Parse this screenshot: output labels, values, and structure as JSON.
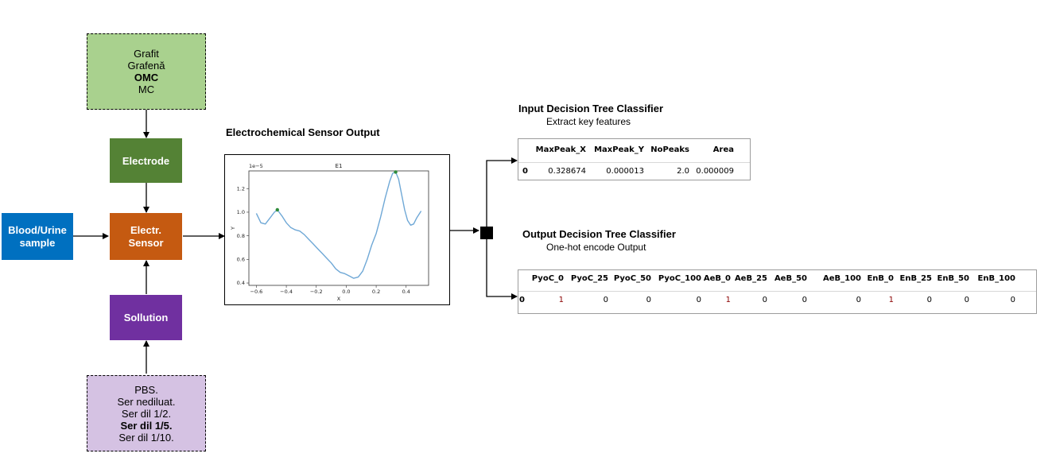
{
  "materials": {
    "lines": [
      "Grafit",
      "Grafenă",
      "OMC",
      "MC"
    ],
    "bold_index": 2
  },
  "electrode": {
    "label": "Electrode"
  },
  "sensor": {
    "lines": [
      "Electr.",
      "Sensor"
    ]
  },
  "sample": {
    "lines": [
      "Blood/Urine",
      "sample"
    ]
  },
  "solution": {
    "label": "Sollution"
  },
  "solutions_list": {
    "lines": [
      "PBS.",
      "Ser nediluat.",
      "Ser dil 1/2.",
      "Ser dil 1/5.",
      "Ser dil 1/10."
    ],
    "bold_index": 3
  },
  "sensor_output": {
    "title": "Electrochemical Sensor Output"
  },
  "input_classifier": {
    "title": "Input Decision Tree Classifier",
    "subtitle": "Extract key features",
    "headers": [
      "MaxPeak_X",
      "MaxPeak_Y",
      "NoPeaks",
      "Area"
    ],
    "row_index": "0",
    "values": [
      "0.328674",
      "0.000013",
      "2.0",
      "0.000009"
    ]
  },
  "output_classifier": {
    "title": "Output Decision Tree Classifier",
    "subtitle": "One-hot encode Output",
    "headers": [
      "PyoC_0",
      "PyoC_25",
      "PyoC_50",
      "PyoC_100",
      "AeB_0",
      "AeB_25",
      "AeB_50",
      "AeB_100",
      "EnB_0",
      "EnB_25",
      "EnB_50",
      "EnB_100"
    ],
    "row_index": "0",
    "values": [
      "1",
      "0",
      "0",
      "0",
      "1",
      "0",
      "0",
      "0",
      "1",
      "0",
      "0",
      "0"
    ]
  },
  "chart_data": {
    "type": "line",
    "title": "E1",
    "xlabel": "X",
    "ylabel": "Y",
    "y_multiplier_label": "1e−5",
    "xlim": [
      -0.65,
      0.55
    ],
    "ylim": [
      0.38,
      1.35
    ],
    "x_ticks": [
      -0.6,
      -0.4,
      -0.2,
      0.0,
      0.2,
      0.4
    ],
    "x_tick_labels": [
      "−0.6",
      "−0.4",
      "−0.2",
      "0.0",
      "0.2",
      "0.4"
    ],
    "y_ticks": [
      0.4,
      0.6,
      0.8,
      1.0,
      1.2
    ],
    "y_tick_labels": [
      "0.4",
      "0.6",
      "0.8",
      "1.0",
      "1.2"
    ],
    "line_color": "#6fa8d6",
    "peak_color": "#2e8b3a",
    "series": [
      {
        "x": [
          -0.6,
          -0.57,
          -0.54,
          -0.51,
          -0.48,
          -0.46,
          -0.43,
          -0.4,
          -0.37,
          -0.34,
          -0.31,
          -0.28,
          -0.25,
          -0.22,
          -0.19,
          -0.16,
          -0.13,
          -0.1,
          -0.07,
          -0.04,
          -0.01,
          0.02,
          0.05,
          0.08,
          0.11,
          0.14,
          0.17,
          0.2,
          0.23,
          0.26,
          0.29,
          0.31,
          0.33,
          0.35,
          0.37,
          0.39,
          0.41,
          0.43,
          0.45,
          0.47,
          0.5
        ],
        "y": [
          0.99,
          0.91,
          0.9,
          0.95,
          1.0,
          1.02,
          0.97,
          0.91,
          0.87,
          0.85,
          0.84,
          0.81,
          0.77,
          0.73,
          0.69,
          0.65,
          0.61,
          0.57,
          0.52,
          0.49,
          0.48,
          0.46,
          0.44,
          0.45,
          0.5,
          0.6,
          0.72,
          0.82,
          0.96,
          1.12,
          1.26,
          1.33,
          1.34,
          1.28,
          1.15,
          1.02,
          0.93,
          0.89,
          0.9,
          0.95,
          1.01
        ]
      }
    ],
    "peaks": [
      {
        "x": -0.46,
        "y": 1.02
      },
      {
        "x": 0.33,
        "y": 1.34
      }
    ]
  }
}
